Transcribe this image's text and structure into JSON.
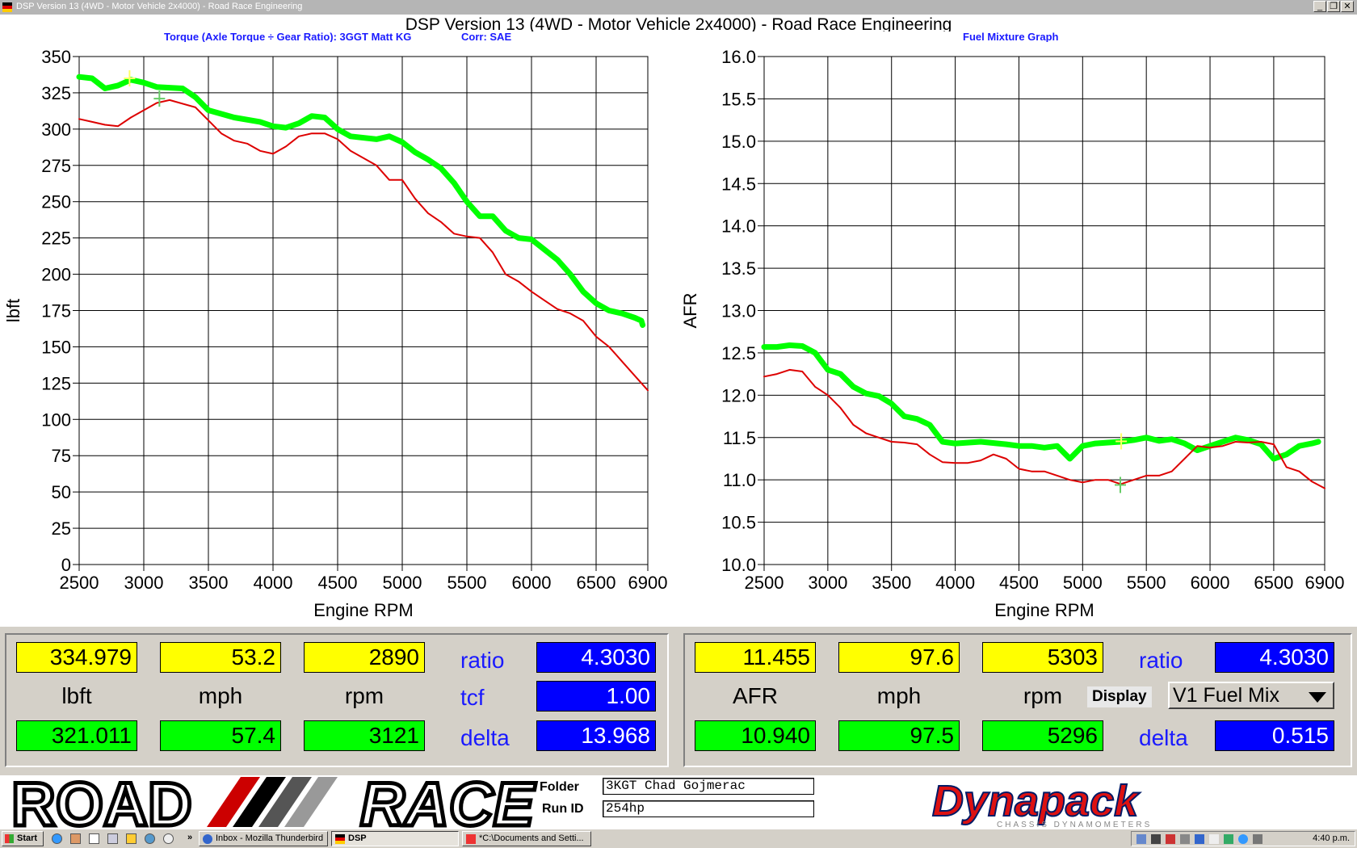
{
  "window": {
    "title": "DSP Version 13 (4WD - Motor Vehicle 2x4000) - Road Race Engineering",
    "controls": {
      "minimize": "_",
      "restore": "❐",
      "close": "✕"
    }
  },
  "app_title": "DSP Version 13 (4WD - Motor Vehicle 2x4000) - Road Race Engineering",
  "charts": {
    "left_caption": "Torque (Axle Torque ÷ Gear Ratio): 3GGT Matt KG",
    "left_corr": "Corr: SAE",
    "right_caption": "Fuel Mixture Graph"
  },
  "chart_data": [
    {
      "type": "line",
      "title": "",
      "xlabel": "Engine RPM",
      "ylabel": "lbft",
      "xlim": [
        2500,
        6900
      ],
      "ylim": [
        0,
        350
      ],
      "xticks": [
        2500,
        3000,
        3500,
        4000,
        4500,
        5000,
        5500,
        6000,
        6500,
        6900
      ],
      "yticks": [
        0,
        25,
        50,
        75,
        100,
        125,
        150,
        175,
        200,
        225,
        250,
        275,
        300,
        325,
        350
      ],
      "grid": true,
      "series": [
        {
          "color": "#00ff00",
          "x": [
            2500,
            2600,
            2700,
            2800,
            2900,
            3000,
            3100,
            3300,
            3400,
            3500,
            3700,
            3900,
            4000,
            4100,
            4200,
            4300,
            4400,
            4500,
            4600,
            4800,
            4900,
            5000,
            5100,
            5200,
            5300,
            5400,
            5500,
            5600,
            5700,
            5800,
            5900,
            6000,
            6100,
            6200,
            6300,
            6400,
            6500,
            6600,
            6700,
            6800,
            6850,
            6860
          ],
          "y": [
            336,
            335,
            328,
            330,
            334,
            332,
            329,
            328,
            322,
            313,
            308,
            305,
            302,
            301,
            304,
            309,
            308,
            300,
            295,
            293,
            295,
            291,
            284,
            279,
            273,
            263,
            250,
            240,
            240,
            230,
            225,
            224,
            217,
            210,
            200,
            188,
            180,
            175,
            173,
            170,
            168,
            165
          ]
        },
        {
          "color": "#dd0000",
          "x": [
            2500,
            2600,
            2700,
            2800,
            2900,
            3000,
            3100,
            3200,
            3400,
            3500,
            3600,
            3700,
            3800,
            3900,
            4000,
            4100,
            4200,
            4300,
            4400,
            4500,
            4600,
            4700,
            4800,
            4900,
            5000,
            5100,
            5200,
            5300,
            5400,
            5500,
            5600,
            5700,
            5800,
            5900,
            6000,
            6100,
            6200,
            6300,
            6400,
            6500,
            6600,
            6700,
            6800,
            6900
          ],
          "y": [
            307,
            305,
            303,
            302,
            308,
            313,
            318,
            320,
            315,
            306,
            297,
            292,
            290,
            285,
            283,
            288,
            295,
            297,
            297,
            293,
            285,
            280,
            275,
            265,
            265,
            252,
            242,
            236,
            228,
            226,
            225,
            215,
            200,
            195,
            188,
            182,
            176,
            173,
            168,
            157,
            150,
            140,
            130,
            120
          ]
        }
      ],
      "markers": [
        {
          "x": 2890,
          "y": 334.979,
          "color": "#ffff66"
        },
        {
          "x": 3121,
          "y": 321.011,
          "color": "#66cc66"
        }
      ]
    },
    {
      "type": "line",
      "title": "",
      "xlabel": "Engine RPM",
      "ylabel": "AFR",
      "xlim": [
        2500,
        6900
      ],
      "ylim": [
        10.0,
        16.0
      ],
      "xticks": [
        2500,
        3000,
        3500,
        4000,
        4500,
        5000,
        5500,
        6000,
        6500,
        6900
      ],
      "yticks": [
        10.0,
        10.5,
        11.0,
        11.5,
        12.0,
        12.5,
        13.0,
        13.5,
        14.0,
        14.5,
        15.0,
        15.5,
        16.0
      ],
      "grid": true,
      "series": [
        {
          "color": "#00ff00",
          "x": [
            2500,
            2600,
            2700,
            2800,
            2900,
            3000,
            3100,
            3200,
            3300,
            3400,
            3500,
            3600,
            3700,
            3800,
            3900,
            4000,
            4200,
            4400,
            4500,
            4600,
            4700,
            4800,
            4900,
            5000,
            5100,
            5200,
            5300,
            5400,
            5500,
            5600,
            5700,
            5800,
            5900,
            6000,
            6100,
            6200,
            6300,
            6400,
            6500,
            6600,
            6700,
            6800,
            6850
          ],
          "y": [
            12.57,
            12.57,
            12.59,
            12.58,
            12.5,
            12.3,
            12.25,
            12.1,
            12.02,
            11.99,
            11.9,
            11.75,
            11.72,
            11.65,
            11.45,
            11.43,
            11.45,
            11.42,
            11.4,
            11.4,
            11.38,
            11.4,
            11.25,
            11.4,
            11.43,
            11.44,
            11.45,
            11.47,
            11.5,
            11.46,
            11.48,
            11.43,
            11.35,
            11.4,
            11.45,
            11.5,
            11.47,
            11.42,
            11.25,
            11.3,
            11.4,
            11.43,
            11.45
          ]
        },
        {
          "color": "#dd0000",
          "x": [
            2500,
            2600,
            2700,
            2800,
            2900,
            3000,
            3100,
            3200,
            3300,
            3400,
            3500,
            3600,
            3700,
            3800,
            3900,
            4000,
            4100,
            4200,
            4300,
            4400,
            4500,
            4600,
            4700,
            4800,
            4900,
            5000,
            5100,
            5200,
            5300,
            5400,
            5500,
            5600,
            5700,
            5800,
            5900,
            6000,
            6100,
            6200,
            6300,
            6400,
            6500,
            6600,
            6700,
            6800,
            6900
          ],
          "y": [
            12.22,
            12.25,
            12.3,
            12.28,
            12.1,
            12.0,
            11.85,
            11.65,
            11.55,
            11.5,
            11.45,
            11.44,
            11.42,
            11.3,
            11.21,
            11.2,
            11.2,
            11.23,
            11.3,
            11.25,
            11.13,
            11.1,
            11.1,
            11.05,
            11.0,
            10.97,
            11.0,
            11.0,
            10.95,
            11.0,
            11.05,
            11.05,
            11.1,
            11.25,
            11.4,
            11.38,
            11.4,
            11.45,
            11.44,
            11.45,
            11.42,
            11.15,
            11.1,
            10.98,
            10.9
          ]
        }
      ],
      "markers": [
        {
          "x": 5303,
          "y": 11.455,
          "color": "#ffff66"
        },
        {
          "x": 5296,
          "y": 10.94,
          "color": "#66cc66"
        }
      ]
    }
  ],
  "left_panel": {
    "top_values": [
      "334.979",
      "53.2",
      "2890"
    ],
    "units": [
      "lbft",
      "mph",
      "rpm"
    ],
    "bottom_values": [
      "321.011",
      "57.4",
      "3121"
    ],
    "ratio_label": "ratio",
    "ratio_value": "4.3030",
    "tcf_label": "tcf",
    "tcf_value": "1.00",
    "delta_label": "delta",
    "delta_value": "13.968"
  },
  "right_panel": {
    "top_values": [
      "11.455",
      "97.6",
      "5303"
    ],
    "units": [
      "AFR",
      "mph",
      "rpm"
    ],
    "bottom_values": [
      "10.940",
      "97.5",
      "5296"
    ],
    "ratio_label": "ratio",
    "ratio_value": "4.3030",
    "display_label": "Display",
    "display_value": "V1 Fuel Mix",
    "delta_label": "delta",
    "delta_value": "0.515"
  },
  "logos": {
    "left_a": "ROAD",
    "left_b": "RACE",
    "right": "Dynapack",
    "right_sub": "CHASSIS DYNAMOMETERS"
  },
  "info": {
    "folder_label": "Folder",
    "folder_value": "3KGT Chad Gojmerac",
    "runid_label": "Run ID",
    "runid_value": "254hp"
  },
  "taskbar": {
    "start": "Start",
    "chevron": "»",
    "tasks": [
      "Inbox - Mozilla Thunderbird",
      "DSP",
      "*C:\\Documents and Setti..."
    ],
    "clock": "4:40 p.m."
  },
  "colors": {
    "accent_blue": "#0000ff",
    "value_yellow": "#ffff00",
    "value_green": "#00ff00",
    "panel_grey": "#d4d0c8"
  }
}
